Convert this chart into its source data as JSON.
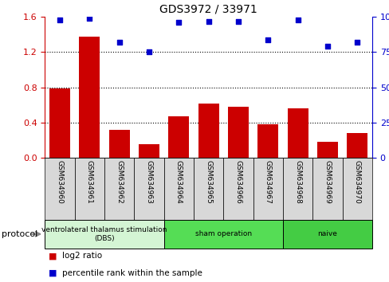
{
  "title": "GDS3972 / 33971",
  "categories": [
    "GSM634960",
    "GSM634961",
    "GSM634962",
    "GSM634963",
    "GSM634964",
    "GSM634965",
    "GSM634966",
    "GSM634967",
    "GSM634968",
    "GSM634969",
    "GSM634970"
  ],
  "bar_values": [
    0.79,
    1.38,
    0.32,
    0.16,
    0.47,
    0.62,
    0.58,
    0.38,
    0.56,
    0.18,
    0.28
  ],
  "scatter_values": [
    98,
    99,
    82,
    75,
    96,
    97,
    97,
    84,
    98,
    79,
    82
  ],
  "bar_color": "#cc0000",
  "scatter_color": "#0000cc",
  "ylim_left": [
    0,
    1.6
  ],
  "ylim_right": [
    0,
    100
  ],
  "yticks_left": [
    0,
    0.4,
    0.8,
    1.2,
    1.6
  ],
  "yticks_right": [
    0,
    25,
    50,
    75,
    100
  ],
  "protocol_groups": [
    {
      "label": "ventrolateral thalamus stimulation\n(DBS)",
      "start": 0,
      "end": 3,
      "color": "#d4f5d4"
    },
    {
      "label": "sham operation",
      "start": 4,
      "end": 7,
      "color": "#55dd55"
    },
    {
      "label": "naive",
      "start": 8,
      "end": 10,
      "color": "#44cc44"
    }
  ],
  "legend_bar_label": "log2 ratio",
  "legend_scatter_label": "percentile rank within the sample",
  "protocol_label": "protocol",
  "bg_color": "#d8d8d8",
  "title_fontsize": 10
}
